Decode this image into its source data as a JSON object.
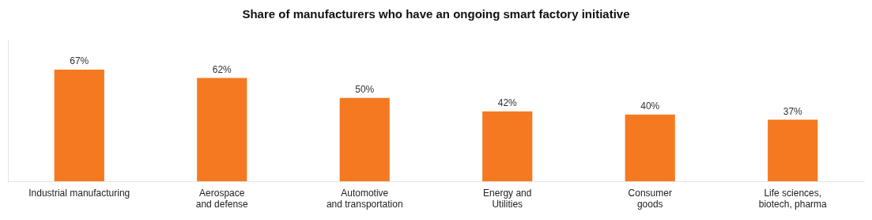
{
  "chart_data": {
    "type": "bar",
    "title": "Share of manufacturers who have an ongoing smart factory initiative",
    "categories": [
      "Industrial manufacturing",
      "Aerospace\nand defense",
      "Automotive\nand transportation",
      "Energy and\nUtilities",
      "Consumer\ngoods",
      "Life sciences,\nbiotech, pharma"
    ],
    "values": [
      67,
      62,
      50,
      42,
      40,
      37
    ],
    "value_labels": [
      "67%",
      "62%",
      "50%",
      "42%",
      "40%",
      "37%"
    ],
    "data_labels": true,
    "color": "#F47920",
    "ylim": [
      0,
      85
    ],
    "grid": false,
    "tick_labels": "x"
  }
}
